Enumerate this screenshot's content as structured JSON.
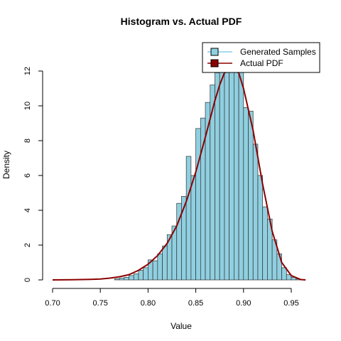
{
  "chart_data": {
    "type": "bar",
    "title": "Histogram vs. Actual PDF",
    "xlabel": "Value",
    "ylabel": "Density",
    "xlim": [
      0.7,
      0.965
    ],
    "ylim": [
      0,
      12
    ],
    "x_ticks": [
      "0.70",
      "0.75",
      "0.80",
      "0.85",
      "0.90",
      "0.95"
    ],
    "y_ticks": [
      "0",
      "2",
      "4",
      "6",
      "8",
      "10",
      "12"
    ],
    "legend_position": "top-right",
    "bin_width": 0.005,
    "histogram": {
      "name": "Generated Samples",
      "fill_color": "#8FCFE0",
      "bin_starts": [
        0.765,
        0.77,
        0.775,
        0.78,
        0.785,
        0.79,
        0.795,
        0.8,
        0.805,
        0.81,
        0.815,
        0.82,
        0.825,
        0.83,
        0.835,
        0.84,
        0.845,
        0.85,
        0.855,
        0.86,
        0.865,
        0.87,
        0.875,
        0.88,
        0.885,
        0.89,
        0.895,
        0.9,
        0.905,
        0.91,
        0.915,
        0.92,
        0.925,
        0.93,
        0.935,
        0.94,
        0.945,
        0.95,
        0.955
      ],
      "values": [
        0.06,
        0.1,
        0.15,
        0.25,
        0.35,
        0.55,
        0.7,
        1.15,
        1.1,
        1.5,
        1.95,
        2.6,
        3.1,
        4.4,
        4.8,
        7.1,
        6.0,
        8.7,
        9.3,
        10.2,
        11.2,
        11.9,
        12.0,
        12.0,
        12.0,
        12.0,
        12.0,
        9.9,
        9.7,
        7.8,
        6.0,
        4.2,
        3.5,
        2.3,
        1.5,
        0.7,
        0.3,
        0.15,
        0.05
      ]
    },
    "pdf": {
      "name": "Actual PDF",
      "color": "#8B0000",
      "x": [
        0.7,
        0.72,
        0.74,
        0.75,
        0.76,
        0.77,
        0.78,
        0.79,
        0.8,
        0.81,
        0.82,
        0.83,
        0.84,
        0.85,
        0.86,
        0.87,
        0.875,
        0.88,
        0.885,
        0.89,
        0.895,
        0.9,
        0.91,
        0.92,
        0.93,
        0.94,
        0.95,
        0.96,
        0.965
      ],
      "y": [
        0.0,
        0.01,
        0.03,
        0.05,
        0.1,
        0.18,
        0.3,
        0.55,
        0.9,
        1.4,
        2.1,
        3.1,
        4.5,
        6.2,
        8.2,
        10.3,
        11.2,
        11.9,
        12.3,
        12.3,
        11.9,
        11.0,
        8.6,
        5.5,
        2.8,
        1.0,
        0.25,
        0.02,
        0.0
      ]
    }
  }
}
